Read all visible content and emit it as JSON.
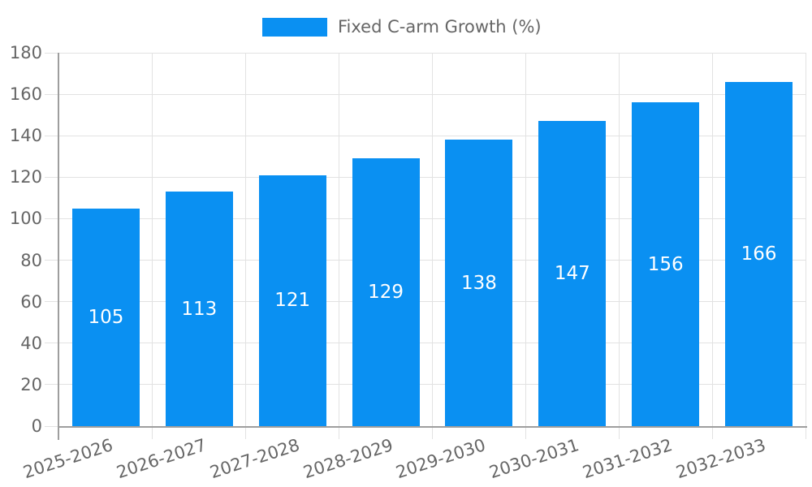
{
  "legend": {
    "label": "Fixed C-arm Growth (%)"
  },
  "colors": {
    "bar": "#0a90f2",
    "grid": "#e2e2e2",
    "axis": "#9e9e9e",
    "tick_text": "#666666",
    "bar_label_text": "#ffffff",
    "background": "#ffffff"
  },
  "chart_data": {
    "type": "bar",
    "title": "",
    "xlabel": "",
    "ylabel": "",
    "categories": [
      "2025-2026",
      "2026-2027",
      "2027-2028",
      "2028-2029",
      "2029-2030",
      "2030-2031",
      "2031-2032",
      "2032-2033"
    ],
    "series": [
      {
        "name": "Fixed C-arm Growth (%)",
        "values": [
          105,
          113,
          121,
          129,
          138,
          147,
          156,
          166
        ]
      }
    ],
    "bar_value_labels": [
      105,
      113,
      121,
      129,
      138,
      147,
      156,
      166
    ],
    "ylim": [
      0,
      180
    ],
    "yticks": [
      0,
      20,
      40,
      60,
      80,
      100,
      120,
      140,
      160,
      180
    ],
    "grid": true,
    "legend_position": "top",
    "x_tick_rotation_deg": -18
  }
}
